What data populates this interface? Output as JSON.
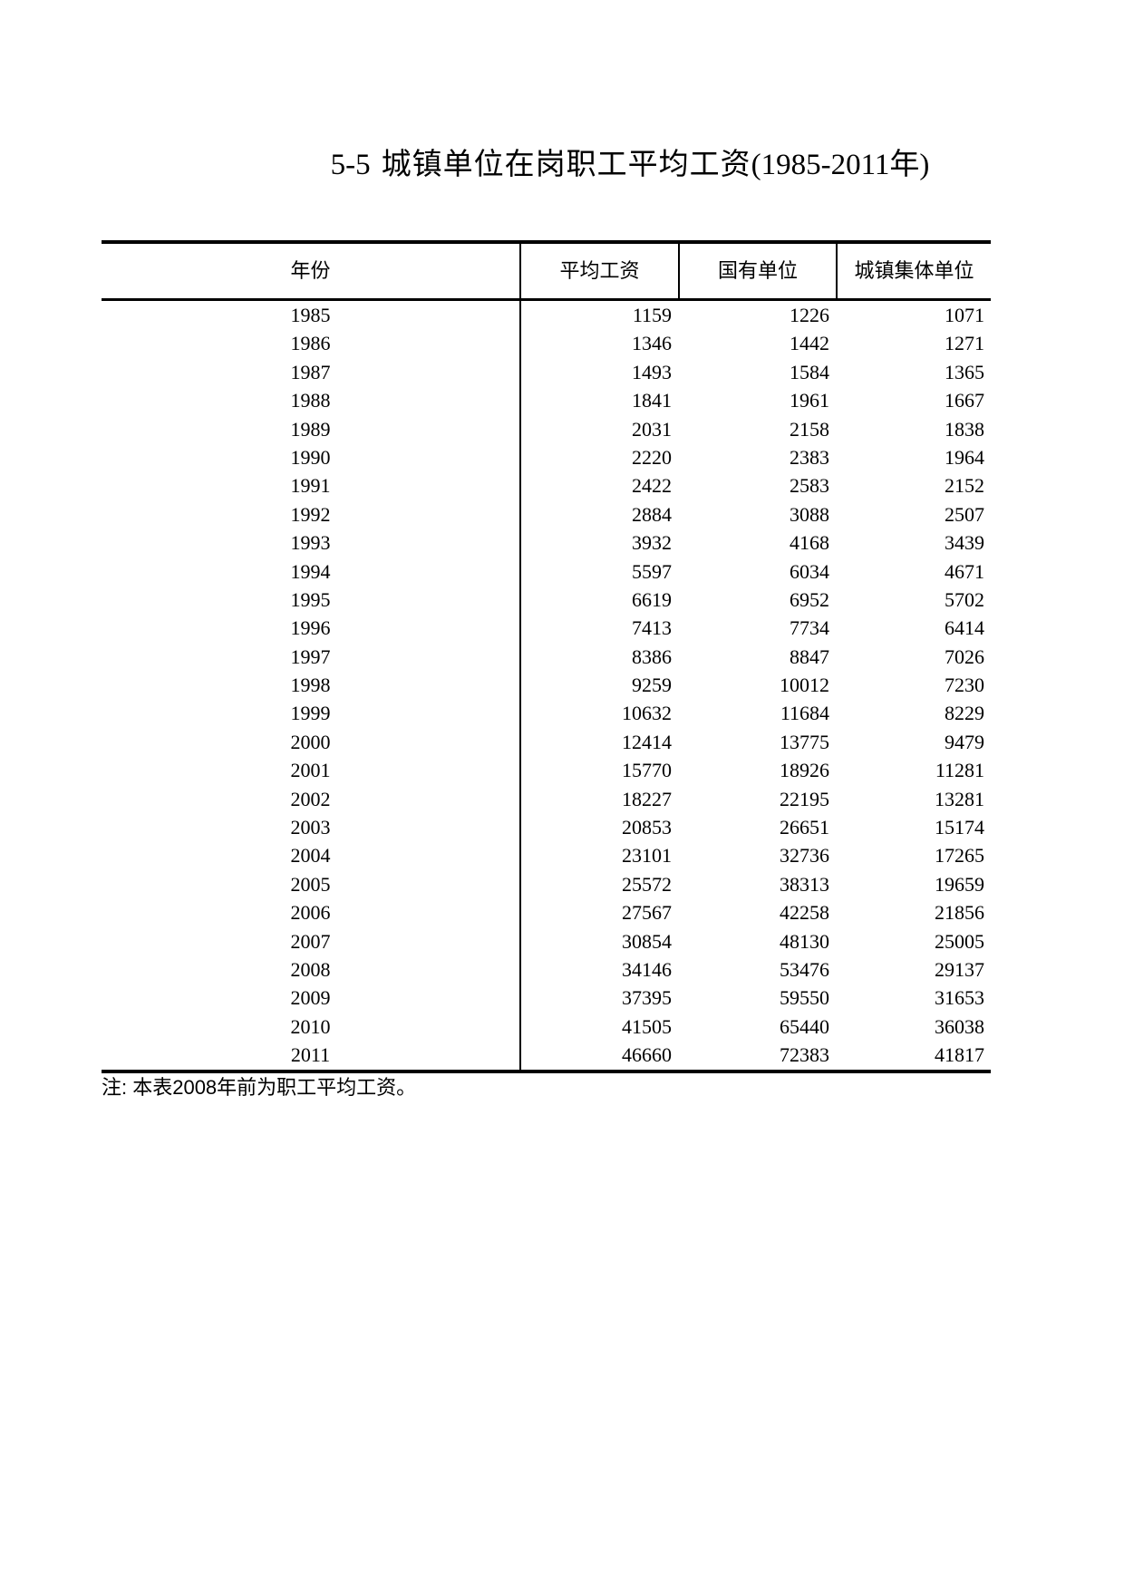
{
  "title": {
    "prefix": "5-5",
    "main": "城镇单位在岗职工平均工资",
    "range": "(1985-2011年)"
  },
  "table": {
    "columns": [
      "年份",
      "平均工资",
      "国有单位",
      "城镇集体单位"
    ],
    "rows": [
      [
        "1985",
        "1159",
        "1226",
        "1071"
      ],
      [
        "1986",
        "1346",
        "1442",
        "1271"
      ],
      [
        "1987",
        "1493",
        "1584",
        "1365"
      ],
      [
        "1988",
        "1841",
        "1961",
        "1667"
      ],
      [
        "1989",
        "2031",
        "2158",
        "1838"
      ],
      [
        "1990",
        "2220",
        "2383",
        "1964"
      ],
      [
        "1991",
        "2422",
        "2583",
        "2152"
      ],
      [
        "1992",
        "2884",
        "3088",
        "2507"
      ],
      [
        "1993",
        "3932",
        "4168",
        "3439"
      ],
      [
        "1994",
        "5597",
        "6034",
        "4671"
      ],
      [
        "1995",
        "6619",
        "6952",
        "5702"
      ],
      [
        "1996",
        "7413",
        "7734",
        "6414"
      ],
      [
        "1997",
        "8386",
        "8847",
        "7026"
      ],
      [
        "1998",
        "9259",
        "10012",
        "7230"
      ],
      [
        "1999",
        "10632",
        "11684",
        "8229"
      ],
      [
        "2000",
        "12414",
        "13775",
        "9479"
      ],
      [
        "2001",
        "15770",
        "18926",
        "11281"
      ],
      [
        "2002",
        "18227",
        "22195",
        "13281"
      ],
      [
        "2003",
        "20853",
        "26651",
        "15174"
      ],
      [
        "2004",
        "23101",
        "32736",
        "17265"
      ],
      [
        "2005",
        "25572",
        "38313",
        "19659"
      ],
      [
        "2006",
        "27567",
        "42258",
        "21856"
      ],
      [
        "2007",
        "30854",
        "48130",
        "25005"
      ],
      [
        "2008",
        "34146",
        "53476",
        "29137"
      ],
      [
        "2009",
        "37395",
        "59550",
        "31653"
      ],
      [
        "2010",
        "41505",
        "65440",
        "36038"
      ],
      [
        "2011",
        "46660",
        "72383",
        "41817"
      ]
    ]
  },
  "note": "注: 本表2008年前为职工平均工资。"
}
